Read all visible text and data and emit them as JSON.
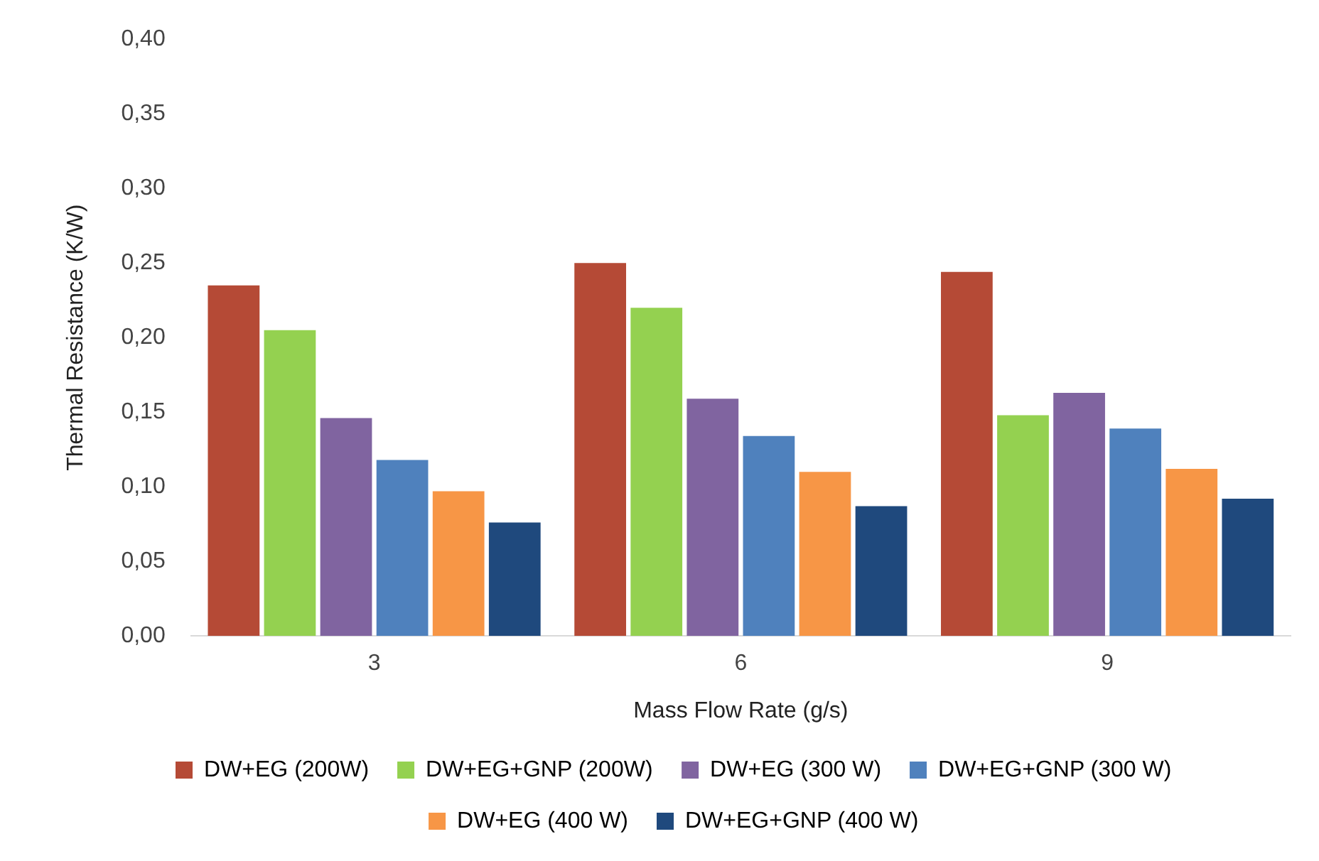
{
  "chart_data": {
    "type": "bar",
    "xlabel": "Mass Flow Rate (g/s)",
    "ylabel": "Thermal Resistance (K/W)",
    "categories": [
      "3",
      "6",
      "9"
    ],
    "series": [
      {
        "name": "DW+EG (200W)",
        "color": "#b54a36",
        "values": [
          0.235,
          0.25,
          0.244
        ]
      },
      {
        "name": "DW+EG+GNP (200W)",
        "color": "#94d150",
        "values": [
          0.205,
          0.22,
          0.148
        ]
      },
      {
        "name": "DW+EG (300 W)",
        "color": "#8064a0",
        "values": [
          0.146,
          0.159,
          0.163
        ]
      },
      {
        "name": "DW+EG+GNP (300 W)",
        "color": "#4f81bd",
        "values": [
          0.118,
          0.134,
          0.139
        ]
      },
      {
        "name": "DW+EG (400 W)",
        "color": "#f79646",
        "values": [
          0.097,
          0.11,
          0.112
        ]
      },
      {
        "name": "DW+EG+GNP (400 W)",
        "color": "#1f497d",
        "values": [
          0.076,
          0.087,
          0.092
        ]
      }
    ],
    "ylim": [
      0,
      0.4
    ],
    "yticks": [
      {
        "value": 0,
        "label": "0,00"
      },
      {
        "value": 0.05,
        "label": "0,05"
      },
      {
        "value": 0.1,
        "label": "0,10"
      },
      {
        "value": 0.15,
        "label": "0,15"
      },
      {
        "value": 0.2,
        "label": "0,20"
      },
      {
        "value": 0.25,
        "label": "0,25"
      },
      {
        "value": 0.3,
        "label": "0,30"
      },
      {
        "value": 0.35,
        "label": "0,35"
      },
      {
        "value": 0.4,
        "label": "0,40"
      }
    ],
    "grid": false,
    "legend": "bottom"
  }
}
